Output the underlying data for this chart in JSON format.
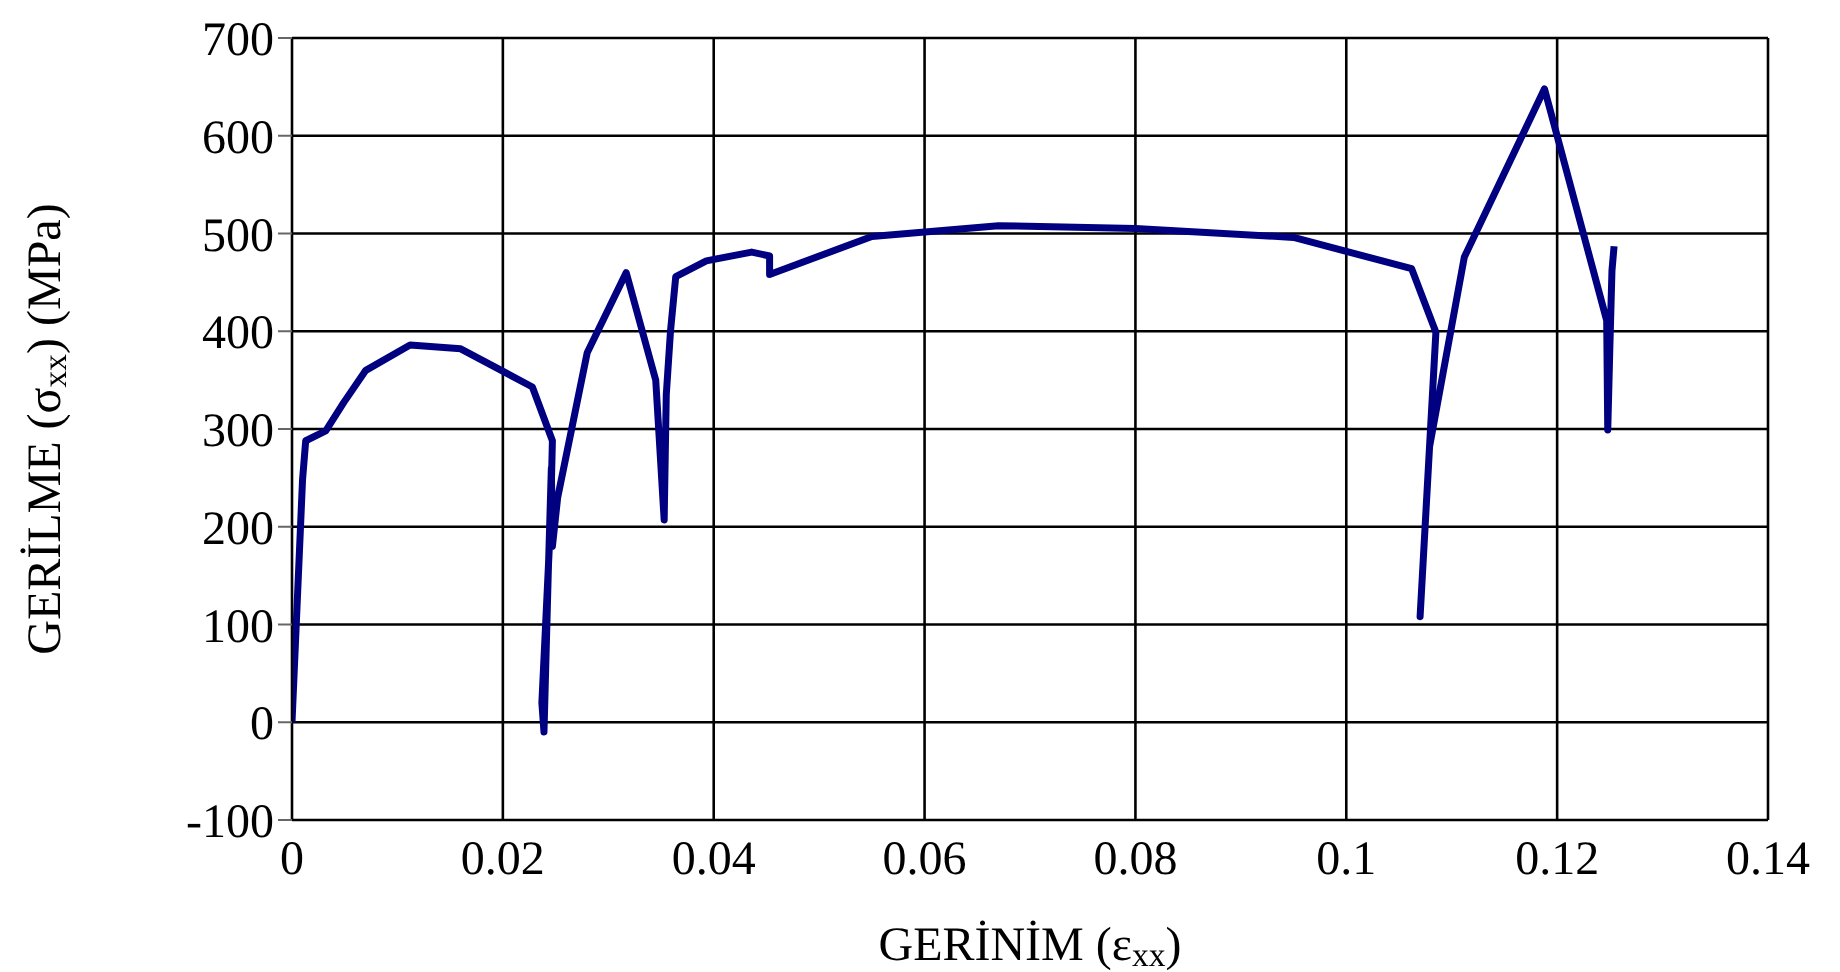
{
  "chart_data": {
    "type": "line",
    "xlabel": "GERİNİM (ε$_{xx}$)",
    "ylabel": "GERİLME (σ$_{xx}$) (MPa)",
    "xlim": [
      0,
      0.14
    ],
    "xticks": [
      0,
      0.02,
      0.04,
      0.06,
      0.08,
      0.1,
      0.12,
      0.14
    ],
    "ylim": [
      -100,
      700
    ],
    "yticks": [
      -100,
      0,
      100,
      200,
      300,
      400,
      500,
      600,
      700
    ],
    "grid": true,
    "marker": "none",
    "line_style": "solid",
    "series": [
      {
        "color": "#000080",
        "x": [
          0,
          0.001,
          0.0013,
          0.0032,
          0.0049,
          0.007,
          0.0112,
          0.016,
          0.0228,
          0.0247,
          0.0245,
          0.0237,
          0.0239,
          0.0243,
          0.0246,
          0.0247,
          0.0252,
          0.028,
          0.0317,
          0.0345,
          0.0353,
          0.0355,
          0.0359,
          0.0364,
          0.0393,
          0.0436,
          0.0453,
          0.0453,
          0.055,
          0.067,
          0.08,
          0.095,
          0.1062,
          0.1085,
          0.107,
          0.1079,
          0.1112,
          0.1188,
          0.1247,
          0.1248,
          0.125,
          0.1252,
          0.1254
        ],
        "values": [
          0,
          248,
          288,
          298,
          327,
          360,
          386,
          382,
          343,
          288,
          200,
          20,
          -10,
          150,
          260,
          180,
          230,
          378,
          460,
          350,
          207,
          335,
          400,
          456,
          472,
          481,
          477,
          458,
          497,
          508,
          505,
          496,
          464,
          399,
          108,
          282,
          476,
          648,
          411,
          299,
          384,
          462,
          487
        ]
      }
    ]
  }
}
